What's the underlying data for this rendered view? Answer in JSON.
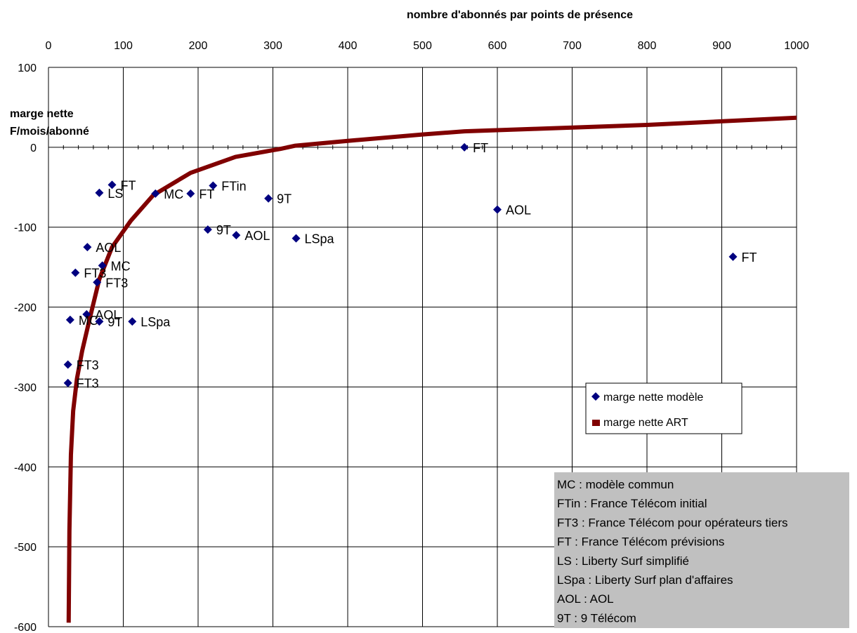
{
  "chart_data": {
    "type": "scatter",
    "title": "nombre d'abonnés par points de présence",
    "ylabel_lines": [
      "marge nette",
      "F/mois/abonné"
    ],
    "xlim": [
      0,
      1000
    ],
    "ylim": [
      -600,
      100
    ],
    "x_ticks": [
      0,
      100,
      200,
      300,
      400,
      500,
      600,
      700,
      800,
      900,
      1000
    ],
    "y_ticks": [
      100,
      0,
      -100,
      -200,
      -300,
      -400,
      -500,
      -600
    ],
    "grid": true,
    "legend_position": "right",
    "series": [
      {
        "name": "marge nette modèle",
        "kind": "scatter",
        "color": "#000080",
        "points": [
          {
            "x": 556,
            "y": 0,
            "label": "FT"
          },
          {
            "x": 915,
            "y": -137,
            "label": "FT"
          },
          {
            "x": 600,
            "y": -78,
            "label": "AOL"
          },
          {
            "x": 85,
            "y": -47,
            "label": "FT"
          },
          {
            "x": 68,
            "y": -57,
            "label": "LS"
          },
          {
            "x": 143,
            "y": -58,
            "label": "MC"
          },
          {
            "x": 190,
            "y": -58,
            "label": "FT"
          },
          {
            "x": 220,
            "y": -48,
            "label": "FTin"
          },
          {
            "x": 294,
            "y": -64,
            "label": "9T"
          },
          {
            "x": 213,
            "y": -103,
            "label": "9T"
          },
          {
            "x": 251,
            "y": -110,
            "label": "AOL"
          },
          {
            "x": 331,
            "y": -114,
            "label": "LSpa"
          },
          {
            "x": 52,
            "y": -125,
            "label": "AOL"
          },
          {
            "x": 72,
            "y": -148,
            "label": "MC"
          },
          {
            "x": 36,
            "y": -157,
            "label": "FT3"
          },
          {
            "x": 65,
            "y": -169,
            "label": "FT3"
          },
          {
            "x": 51,
            "y": -209,
            "label": "AOL"
          },
          {
            "x": 29,
            "y": -216,
            "label": "MC"
          },
          {
            "x": 68,
            "y": -218,
            "label": "9T"
          },
          {
            "x": 112,
            "y": -218,
            "label": "LSpa"
          },
          {
            "x": 26,
            "y": -272,
            "label": "FT3"
          },
          {
            "x": 26,
            "y": -295,
            "label": "FT3"
          }
        ]
      },
      {
        "name": "marge nette ART",
        "kind": "line",
        "color": "#800000",
        "x": [
          27,
          28,
          30,
          33,
          38,
          45,
          55,
          68,
          85,
          110,
          140,
          190,
          250,
          310,
          330,
          400,
          500,
          556,
          650,
          800,
          1000
        ],
        "y": [
          -595,
          -480,
          -385,
          -330,
          -290,
          -255,
          -215,
          -165,
          -125,
          -92,
          -60,
          -32,
          -12,
          -2,
          2,
          8,
          16,
          20,
          23,
          28,
          37
        ]
      }
    ],
    "annotation_lines": [
      "MC : modèle commun",
      "FTin : France Télécom initial",
      "FT3 : France Télécom pour opérateurs tiers",
      "FT : France Télécom prévisions",
      "LS : Liberty Surf simplifié",
      "LSpa : Liberty Surf  plan d'affaires",
      "AOL : AOL",
      "9T : 9 Télécom"
    ]
  }
}
